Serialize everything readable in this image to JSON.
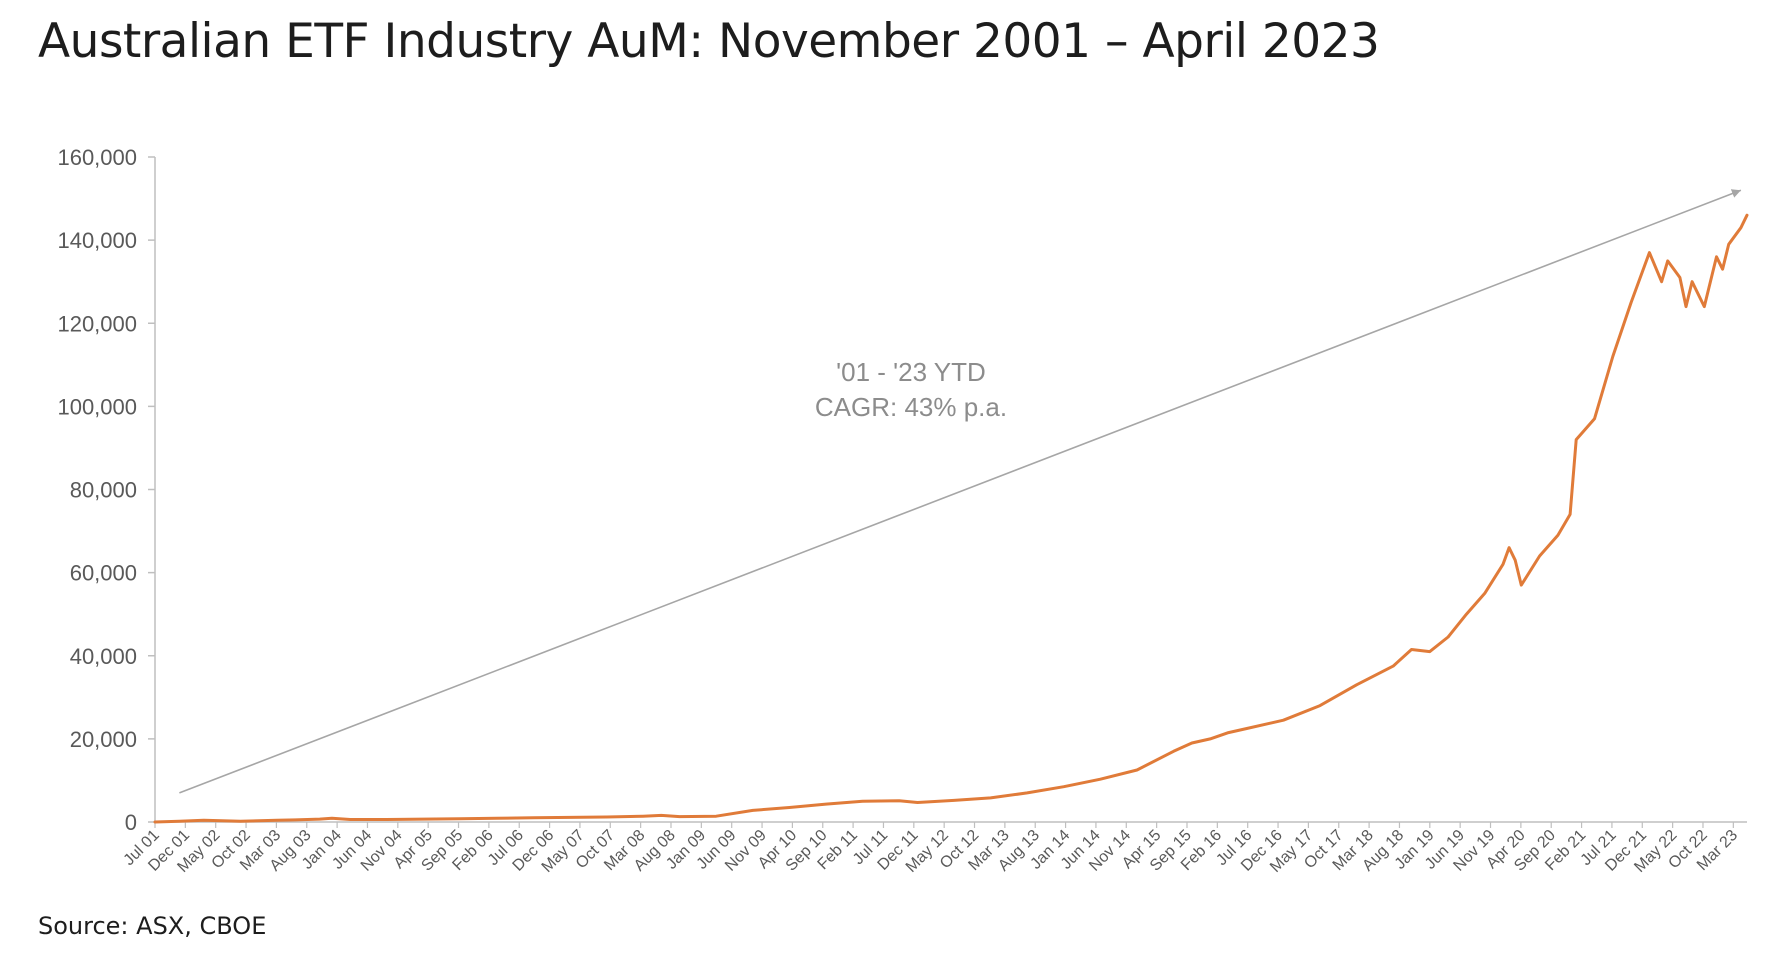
{
  "title": "Australian ETF Industry AuM: November 2001 – April 2023",
  "source": "Source: ASX, CBOE",
  "colors": {
    "line": "#e07b39",
    "arrow": "#a6a6a6",
    "axis": "#bfbfbf",
    "text": "#595959"
  },
  "chart_data": {
    "type": "line",
    "title": "Australian ETF Industry AuM: November 2001 – April 2023",
    "xlabel": "",
    "ylabel": "",
    "ylim": [
      0,
      160000
    ],
    "yticks": [
      0,
      20000,
      40000,
      60000,
      80000,
      100000,
      120000,
      140000,
      160000
    ],
    "ytick_labels": [
      "0",
      "20,000",
      "40,000",
      "60,000",
      "80,000",
      "100,000",
      "120,000",
      "140,000",
      "160,000"
    ],
    "xlim": [
      "2001-07",
      "2023-04"
    ],
    "xtick_labels": [
      "Jul 01",
      "Dec 01",
      "May 02",
      "Oct 02",
      "Mar 03",
      "Aug 03",
      "Jan 04",
      "Jun 04",
      "Nov 04",
      "Apr 05",
      "Sep 05",
      "Feb 06",
      "Jul 06",
      "Dec 06",
      "May 07",
      "Oct 07",
      "Mar 08",
      "Aug 08",
      "Jan 09",
      "Jun 09",
      "Nov 09",
      "Apr 10",
      "Sep 10",
      "Feb 11",
      "Jul 11",
      "Dec 11",
      "May 12",
      "Oct 12",
      "Mar 13",
      "Aug 13",
      "Jan 14",
      "Jun 14",
      "Nov 14",
      "Apr 15",
      "Sep 15",
      "Feb 16",
      "Jul 16",
      "Dec 16",
      "May 17",
      "Oct 17",
      "Mar 18",
      "Aug 18",
      "Jan 19",
      "Jun 19",
      "Nov 19",
      "Apr 20",
      "Sep 20",
      "Feb 21",
      "Jul 21",
      "Dec 21",
      "May 22",
      "Oct 22",
      "Mar 23"
    ],
    "grid": false,
    "legend": "none",
    "series": [
      {
        "points": [
          [
            "2001-07",
            0
          ],
          [
            "2001-11",
            200
          ],
          [
            "2002-03",
            400
          ],
          [
            "2002-06",
            300
          ],
          [
            "2002-09",
            200
          ],
          [
            "2003-03",
            400
          ],
          [
            "2003-06",
            500
          ],
          [
            "2003-10",
            700
          ],
          [
            "2003-12",
            900
          ],
          [
            "2004-03",
            600
          ],
          [
            "2004-09",
            600
          ],
          [
            "2005-03",
            700
          ],
          [
            "2005-09",
            800
          ],
          [
            "2006-03",
            900
          ],
          [
            "2006-09",
            1000
          ],
          [
            "2007-03",
            1100
          ],
          [
            "2007-09",
            1200
          ],
          [
            "2008-03",
            1400
          ],
          [
            "2008-06",
            1600
          ],
          [
            "2008-09",
            1300
          ],
          [
            "2009-03",
            1400
          ],
          [
            "2009-09",
            2800
          ],
          [
            "2010-03",
            3500
          ],
          [
            "2010-09",
            4300
          ],
          [
            "2011-03",
            5000
          ],
          [
            "2011-09",
            5100
          ],
          [
            "2011-12",
            4700
          ],
          [
            "2012-06",
            5200
          ],
          [
            "2012-12",
            5800
          ],
          [
            "2013-06",
            7000
          ],
          [
            "2013-12",
            8500
          ],
          [
            "2014-06",
            10300
          ],
          [
            "2014-12",
            12500
          ],
          [
            "2015-06",
            17000
          ],
          [
            "2015-09",
            19000
          ],
          [
            "2015-12",
            20000
          ],
          [
            "2016-03",
            21500
          ],
          [
            "2016-06",
            22500
          ],
          [
            "2016-12",
            24500
          ],
          [
            "2017-06",
            28000
          ],
          [
            "2017-12",
            33000
          ],
          [
            "2018-06",
            37500
          ],
          [
            "2018-09",
            41500
          ],
          [
            "2018-12",
            41000
          ],
          [
            "2019-03",
            44500
          ],
          [
            "2019-06",
            50000
          ],
          [
            "2019-09",
            55000
          ],
          [
            "2019-12",
            62000
          ],
          [
            "2020-01",
            66000
          ],
          [
            "2020-02",
            63000
          ],
          [
            "2020-03",
            57000
          ],
          [
            "2020-06",
            64000
          ],
          [
            "2020-09",
            69000
          ],
          [
            "2020-11",
            74000
          ],
          [
            "2020-12",
            92000
          ],
          [
            "2021-03",
            97000
          ],
          [
            "2021-06",
            112000
          ],
          [
            "2021-09",
            125000
          ],
          [
            "2021-12",
            137000
          ],
          [
            "2022-02",
            130000
          ],
          [
            "2022-03",
            135000
          ],
          [
            "2022-05",
            131000
          ],
          [
            "2022-06",
            124000
          ],
          [
            "2022-07",
            130000
          ],
          [
            "2022-09",
            124000
          ],
          [
            "2022-11",
            136000
          ],
          [
            "2022-12",
            133000
          ],
          [
            "2023-01",
            139000
          ],
          [
            "2023-03",
            143000
          ],
          [
            "2023-04",
            146000
          ]
        ]
      }
    ],
    "trend_arrow": {
      "from": [
        "2001-11",
        7000
      ],
      "to": [
        "2023-03",
        152000
      ]
    },
    "annotation": {
      "lines": [
        "'01 - '23 YTD",
        "CAGR: 43% p.a."
      ]
    }
  }
}
